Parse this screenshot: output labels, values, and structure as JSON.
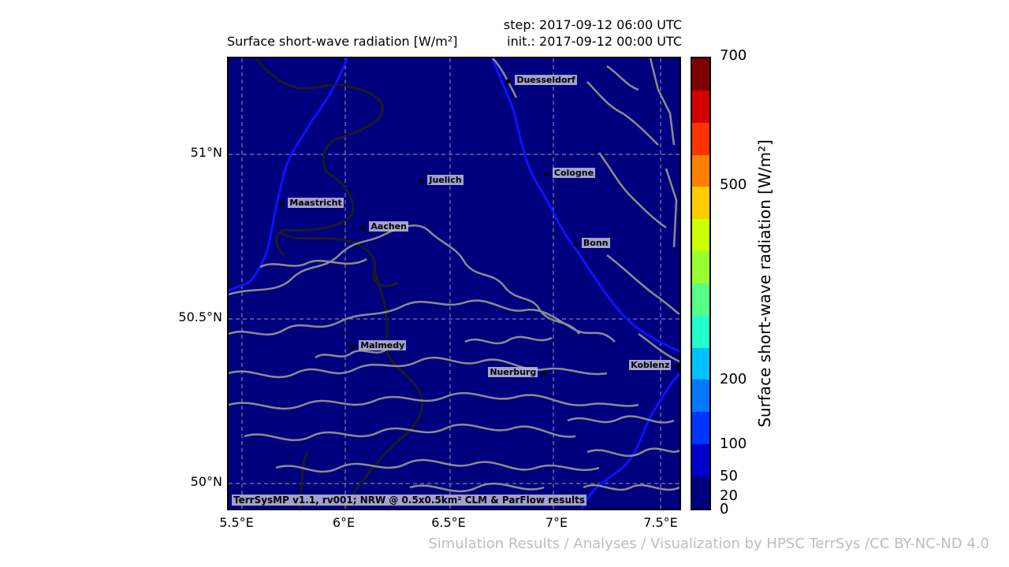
{
  "title": "Surface short-wave radiation [W/m²]",
  "step": "step: 2017-09-12 06:00 UTC",
  "init": "init.: 2017-09-12 00:00 UTC",
  "lat_labels": [
    "51°N",
    "50.5°N",
    "50°N"
  ],
  "lon_labels": [
    "5.5°E",
    "6°E",
    "6.5°E",
    "7°E",
    "7.5°E"
  ],
  "cities": [
    {
      "name": "Duesseldorf",
      "lon": 6.78,
      "lat": 51.22
    },
    {
      "name": "Cologne",
      "lon": 6.96,
      "lat": 50.94
    },
    {
      "name": "Juelich",
      "lon": 6.36,
      "lat": 50.92
    },
    {
      "name": "Maastricht",
      "lon": 5.69,
      "lat": 50.85
    },
    {
      "name": "Aachen",
      "lon": 6.08,
      "lat": 50.78
    },
    {
      "name": "Bonn",
      "lon": 7.1,
      "lat": 50.73
    },
    {
      "name": "Malmedy",
      "lon": 6.03,
      "lat": 50.42
    },
    {
      "name": "Nuerburg",
      "lon": 6.95,
      "lat": 50.34
    },
    {
      "name": "Koblenz",
      "lon": 7.59,
      "lat": 50.36
    }
  ],
  "credit": "TerrSysMP v1.1, rv001; NRW @ 0.5x0.5km² CLM & ParFlow results",
  "colorbar": {
    "label": "Surface short-wave radiation [W/m²]",
    "ticks": [
      "700",
      "500",
      "200",
      "100",
      "50",
      "20",
      "0"
    ],
    "colors": [
      "#7f0000",
      "#d40000",
      "#ff3300",
      "#ff7f00",
      "#ffcc00",
      "#ccff00",
      "#99ff33",
      "#55ff88",
      "#22ffcc",
      "#00c0ff",
      "#0077ff",
      "#0033ff",
      "#0000cc",
      "#00007f"
    ]
  },
  "footer": "Simulation Results / Analyses / Visualization by HPSC TerrSys /CC BY-NC-ND 4.0"
}
